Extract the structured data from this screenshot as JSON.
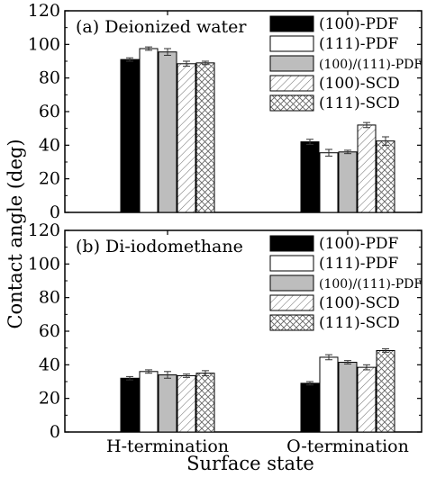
{
  "chart_data": [
    {
      "type": "bar",
      "title": "(a)  Deionized water",
      "categories": [
        "H-termination",
        "O-termination"
      ],
      "ylim": [
        0,
        120
      ],
      "yticks": [
        "0",
        "20",
        "40",
        "60",
        "80",
        "100",
        "120"
      ],
      "series": [
        {
          "name": "(100)-PDF",
          "values": [
            91,
            42
          ],
          "errors": [
            1,
            1.5
          ],
          "pattern": "solid-black"
        },
        {
          "name": "(111)-PDF",
          "values": [
            97.5,
            35.5
          ],
          "errors": [
            1,
            2
          ],
          "pattern": "white"
        },
        {
          "name": "(100)/(111)-PDF",
          "values": [
            95.5,
            36
          ],
          "errors": [
            2,
            1
          ],
          "pattern": "gray"
        },
        {
          "name": "(100)-SCD",
          "values": [
            88.5,
            52
          ],
          "errors": [
            1.5,
            1.5
          ],
          "pattern": "diagonal"
        },
        {
          "name": "(111)-SCD",
          "values": [
            89,
            42.5
          ],
          "errors": [
            1,
            2.5
          ],
          "pattern": "crosshatch"
        }
      ]
    },
    {
      "type": "bar",
      "title": "(b)  Di-iodomethane",
      "categories": [
        "H-termination",
        "O-termination"
      ],
      "ylim": [
        0,
        120
      ],
      "yticks": [
        "0",
        "20",
        "40",
        "60",
        "80",
        "100",
        "120"
      ],
      "series": [
        {
          "name": "(100)-PDF",
          "values": [
            32,
            29
          ],
          "errors": [
            1,
            1
          ],
          "pattern": "solid-black"
        },
        {
          "name": "(111)-PDF",
          "values": [
            36,
            44.5
          ],
          "errors": [
            1,
            1.5
          ],
          "pattern": "white"
        },
        {
          "name": "(100)/(111)-PDF",
          "values": [
            34,
            41.5
          ],
          "errors": [
            2,
            1
          ],
          "pattern": "gray"
        },
        {
          "name": "(100)-SCD",
          "values": [
            33.5,
            38.5
          ],
          "errors": [
            1,
            1.5
          ],
          "pattern": "diagonal"
        },
        {
          "name": "(111)-SCD",
          "values": [
            35,
            48.5
          ],
          "errors": [
            1.5,
            1
          ],
          "pattern": "crosshatch"
        }
      ]
    }
  ],
  "ylabel": "Contact angle (deg)",
  "xlabel": "Surface state",
  "colors": {
    "black": "#000000",
    "gray": "#bdbdbd",
    "white": "#ffffff",
    "error": "#333333"
  }
}
